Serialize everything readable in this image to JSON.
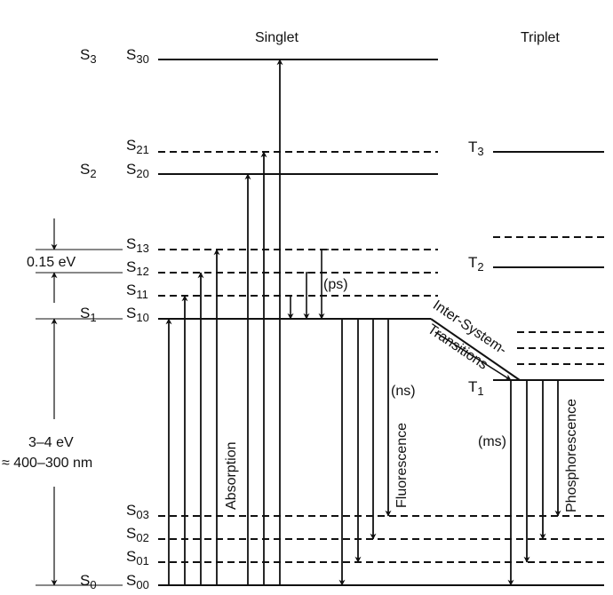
{
  "titles": {
    "singlet": "Singlet",
    "triplet": "Triplet"
  },
  "levels": {
    "S3": "S3",
    "S30": "S30",
    "S21": "S21",
    "S2": "S2",
    "S20": "S20",
    "S13": "S13",
    "S12": "S12",
    "S11": "S11",
    "S1": "S1",
    "S10": "S10",
    "S03": "S03",
    "S02": "S02",
    "S01": "S01",
    "S0": "S0",
    "S00": "S00",
    "T3": "T3",
    "T2": "T2",
    "T1": "T1"
  },
  "annotations": {
    "vib_gap": "0.15 eV",
    "gap_energy": "3–4 eV",
    "gap_wavelength": "≈ 400–300 nm",
    "relax_time": "(ps)",
    "fluor_time": "(ns)",
    "phos_time": "(ms)"
  },
  "processes": {
    "absorption": "Absorption",
    "fluorescence": "Fluorescence",
    "phosphorescence": "Phosphorescence",
    "isc_line1": "Inter-System-",
    "isc_line2": "Transitions"
  }
}
